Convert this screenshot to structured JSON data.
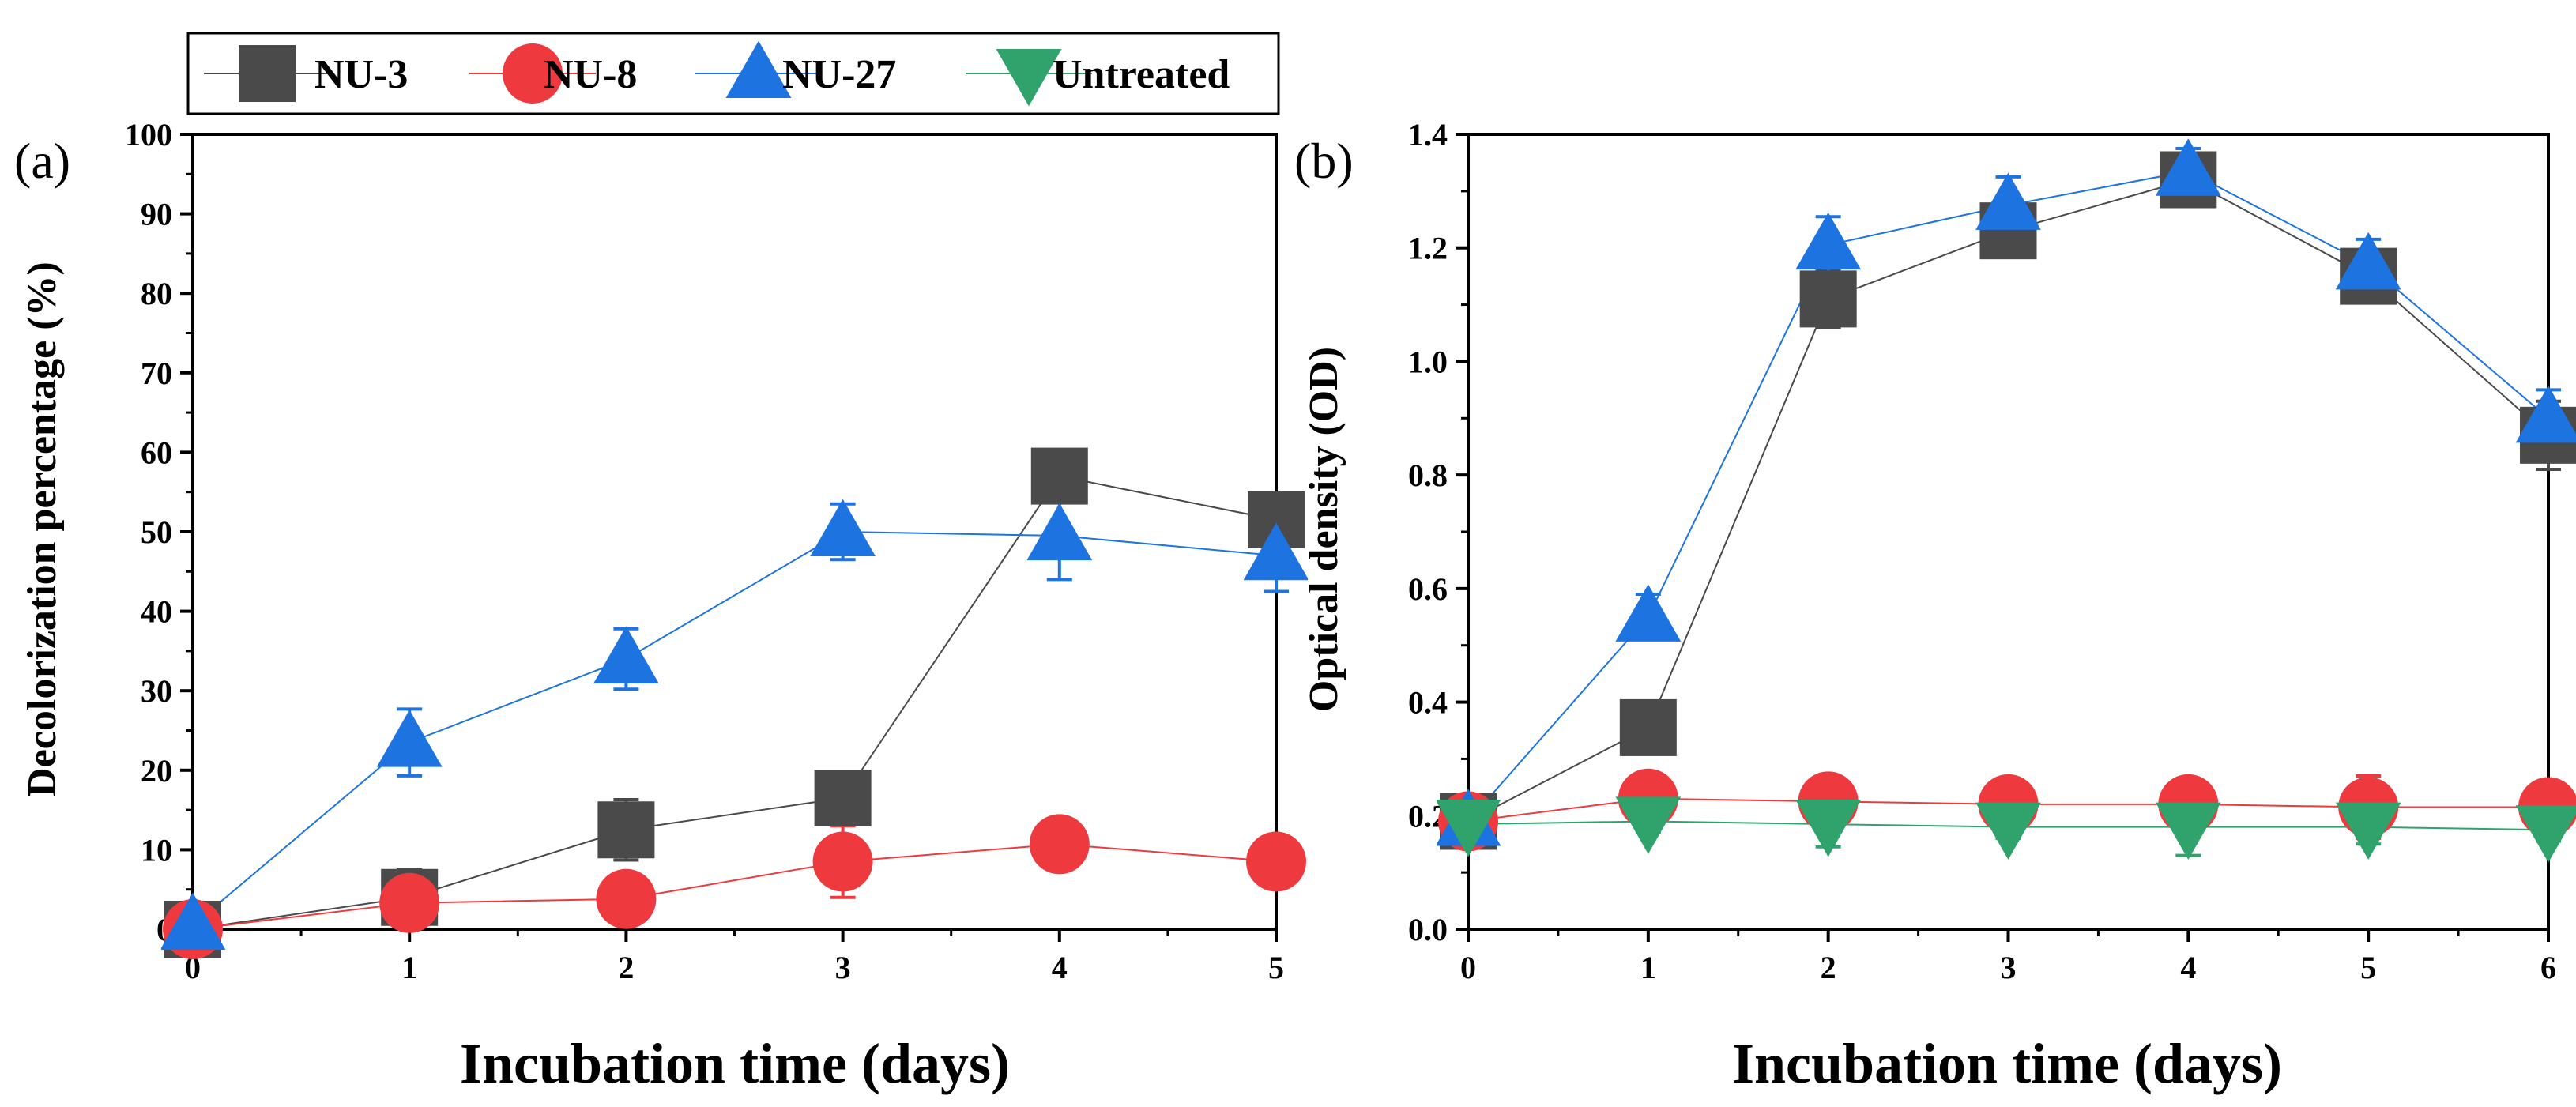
{
  "legend": {
    "items": [
      {
        "label": "NU-3",
        "color": "#4a4a4a",
        "marker": "square"
      },
      {
        "label": "NU-8",
        "color": "#ee3a3f",
        "marker": "circle"
      },
      {
        "label": "NU-27",
        "color": "#1d74e0",
        "marker": "triangle-up"
      },
      {
        "label": "Untreated",
        "color": "#2fa36b",
        "marker": "triangle-down"
      }
    ]
  },
  "chart_data": [
    {
      "type": "line",
      "panel_label": "(a)",
      "xlabel": "Incubation time (days)",
      "ylabel": "Decolorization percentage (%)",
      "xlim": [
        0,
        5
      ],
      "ylim": [
        0,
        100
      ],
      "x_ticks": [
        0,
        1,
        2,
        3,
        4,
        5
      ],
      "y_ticks": [
        0,
        10,
        20,
        30,
        40,
        50,
        60,
        70,
        80,
        90,
        100
      ],
      "grid": false,
      "x": [
        0,
        1,
        2,
        3,
        4,
        5
      ],
      "series": [
        {
          "name": "NU-3",
          "values": [
            0,
            4,
            12.5,
            16.5,
            57,
            51.5
          ],
          "errors": [
            0,
            3.5,
            3.8,
            3.3,
            1.5,
            2.8
          ]
        },
        {
          "name": "NU-8",
          "values": [
            0,
            3.3,
            3.8,
            8.5,
            10.7,
            8.5
          ],
          "errors": [
            0,
            1.5,
            0.8,
            4.5,
            3.0,
            1.0
          ]
        },
        {
          "name": "NU-27",
          "values": [
            0.5,
            23.5,
            34,
            50,
            49.5,
            47
          ],
          "errors": [
            0,
            4.2,
            3.8,
            3.5,
            5.5,
            4.5
          ]
        }
      ]
    },
    {
      "type": "line",
      "panel_label": "(b)",
      "xlabel": "Incubation time (days)",
      "ylabel": "Optical density (OD)",
      "xlim": [
        0,
        6
      ],
      "ylim": [
        0,
        1.4
      ],
      "x_ticks": [
        0,
        1,
        2,
        3,
        4,
        5,
        6
      ],
      "y_ticks": [
        0.0,
        0.2,
        0.4,
        0.6,
        0.8,
        1.0,
        1.2,
        1.4
      ],
      "y_tick_labels": [
        "0.0",
        "0.2",
        "0.4",
        "0.6",
        "0.8",
        "1.0",
        "1.2",
        "1.4"
      ],
      "grid": false,
      "x": [
        0,
        1,
        2,
        3,
        4,
        5,
        6
      ],
      "series": [
        {
          "name": "NU-3",
          "values": [
            0.19,
            0.355,
            1.11,
            1.23,
            1.32,
            1.15,
            0.87
          ],
          "errors": [
            0.01,
            0.045,
            0.05,
            0.04,
            0.04,
            0.04,
            0.06
          ]
        },
        {
          "name": "NU-8",
          "values": [
            0.19,
            0.23,
            0.225,
            0.22,
            0.22,
            0.215,
            0.215
          ],
          "errors": [
            0.01,
            0.02,
            0.02,
            0.02,
            0.02,
            0.055,
            0.04
          ]
        },
        {
          "name": "NU-27",
          "values": [
            0.19,
            0.55,
            1.205,
            1.275,
            1.335,
            1.17,
            0.9
          ],
          "errors": [
            0.01,
            0.04,
            0.05,
            0.05,
            0.04,
            0.045,
            0.05
          ]
        },
        {
          "name": "Untreated",
          "values": [
            0.185,
            0.19,
            0.185,
            0.18,
            0.18,
            0.18,
            0.175
          ],
          "errors": [
            0.01,
            0.02,
            0.04,
            0.02,
            0.05,
            0.03,
            0.02
          ]
        }
      ]
    }
  ]
}
